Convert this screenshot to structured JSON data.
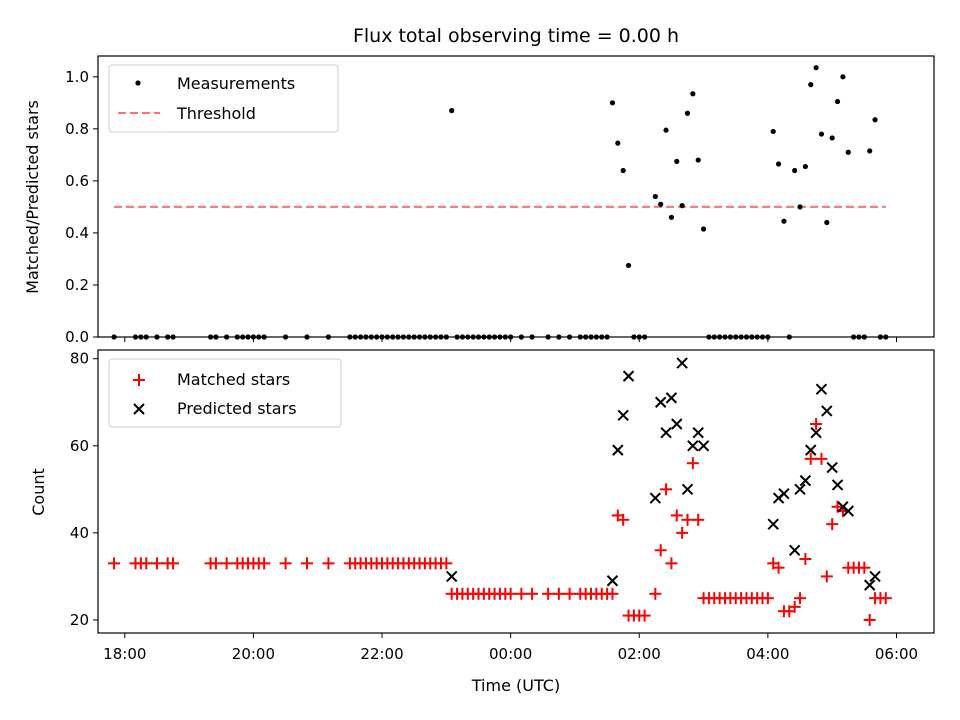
{
  "chart_data": [
    {
      "type": "scatter",
      "title": "Flux total observing time = 0.00 h",
      "xlabel": "",
      "ylabel": "Matched/Predicted stars",
      "xlim": [
        "17:35",
        "06:35"
      ],
      "ylim": [
        0,
        1.08
      ],
      "yticks": [
        "0.0",
        "0.2",
        "0.4",
        "0.6",
        "0.8",
        "1.0"
      ],
      "legend_position": "top-left",
      "series": [
        {
          "name": "Measurements",
          "marker": "dot",
          "color": "#000000",
          "points": [
            [
              "17:50",
              0
            ],
            [
              "18:10",
              0
            ],
            [
              "18:15",
              0
            ],
            [
              "18:20",
              0
            ],
            [
              "18:30",
              0
            ],
            [
              "18:40",
              0
            ],
            [
              "18:45",
              0
            ],
            [
              "19:20",
              0
            ],
            [
              "19:25",
              0
            ],
            [
              "19:35",
              0
            ],
            [
              "19:45",
              0
            ],
            [
              "19:50",
              0
            ],
            [
              "19:55",
              0
            ],
            [
              "20:00",
              0
            ],
            [
              "20:05",
              0
            ],
            [
              "20:10",
              0
            ],
            [
              "20:30",
              0
            ],
            [
              "20:50",
              0
            ],
            [
              "21:10",
              0
            ],
            [
              "21:30",
              0
            ],
            [
              "21:35",
              0
            ],
            [
              "21:40",
              0
            ],
            [
              "21:45",
              0
            ],
            [
              "21:50",
              0
            ],
            [
              "21:55",
              0
            ],
            [
              "22:00",
              0
            ],
            [
              "22:05",
              0
            ],
            [
              "22:10",
              0
            ],
            [
              "22:15",
              0
            ],
            [
              "22:20",
              0
            ],
            [
              "22:25",
              0
            ],
            [
              "22:30",
              0
            ],
            [
              "22:35",
              0
            ],
            [
              "22:40",
              0
            ],
            [
              "22:45",
              0
            ],
            [
              "22:50",
              0
            ],
            [
              "22:55",
              0
            ],
            [
              "23:00",
              0
            ],
            [
              "23:05",
              0.87
            ],
            [
              "23:10",
              0
            ],
            [
              "23:15",
              0
            ],
            [
              "23:20",
              0
            ],
            [
              "23:25",
              0
            ],
            [
              "23:30",
              0
            ],
            [
              "23:35",
              0
            ],
            [
              "23:40",
              0
            ],
            [
              "23:45",
              0
            ],
            [
              "23:50",
              0
            ],
            [
              "23:55",
              0
            ],
            [
              "00:00",
              0
            ],
            [
              "00:10",
              0
            ],
            [
              "00:20",
              0
            ],
            [
              "00:35",
              0
            ],
            [
              "00:45",
              0
            ],
            [
              "00:55",
              0
            ],
            [
              "01:05",
              0
            ],
            [
              "01:10",
              0
            ],
            [
              "01:15",
              0
            ],
            [
              "01:20",
              0
            ],
            [
              "01:25",
              0
            ],
            [
              "01:30",
              0
            ],
            [
              "01:35",
              0.9
            ],
            [
              "01:40",
              0.745
            ],
            [
              "01:45",
              0.64
            ],
            [
              "01:50",
              0.275
            ],
            [
              "01:55",
              0
            ],
            [
              "02:00",
              0
            ],
            [
              "02:05",
              0
            ],
            [
              "02:15",
              0.54
            ],
            [
              "02:20",
              0.51
            ],
            [
              "02:25",
              0.795
            ],
            [
              "02:30",
              0.46
            ],
            [
              "02:35",
              0.675
            ],
            [
              "02:40",
              0.505
            ],
            [
              "02:45",
              0.86
            ],
            [
              "02:50",
              0.935
            ],
            [
              "02:55",
              0.68
            ],
            [
              "03:00",
              0.415
            ],
            [
              "03:05",
              0
            ],
            [
              "03:10",
              0
            ],
            [
              "03:15",
              0
            ],
            [
              "03:20",
              0
            ],
            [
              "03:25",
              0
            ],
            [
              "03:30",
              0
            ],
            [
              "03:35",
              0
            ],
            [
              "03:40",
              0
            ],
            [
              "03:45",
              0
            ],
            [
              "03:50",
              0
            ],
            [
              "03:55",
              0
            ],
            [
              "04:00",
              0
            ],
            [
              "04:05",
              0.79
            ],
            [
              "04:10",
              0.665
            ],
            [
              "04:15",
              0.445
            ],
            [
              "04:20",
              0
            ],
            [
              "04:25",
              0.64
            ],
            [
              "04:30",
              0.5
            ],
            [
              "04:35",
              0.655
            ],
            [
              "04:40",
              0.97
            ],
            [
              "04:45",
              1.035
            ],
            [
              "04:50",
              0.78
            ],
            [
              "04:55",
              0.44
            ],
            [
              "05:00",
              0.765
            ],
            [
              "05:05",
              0.905
            ],
            [
              "05:10",
              1.0
            ],
            [
              "05:15",
              0.71
            ],
            [
              "05:20",
              0
            ],
            [
              "05:25",
              0
            ],
            [
              "05:30",
              0
            ],
            [
              "05:35",
              0.715
            ],
            [
              "05:40",
              0.835
            ],
            [
              "05:45",
              0
            ],
            [
              "05:50",
              0
            ]
          ]
        },
        {
          "name": "Threshold",
          "marker": "dashed-line",
          "color": "#ff7070",
          "points": [
            [
              "17:50",
              0.5
            ],
            [
              "05:50",
              0.5
            ]
          ]
        }
      ]
    },
    {
      "type": "scatter",
      "title": "",
      "xlabel": "Time (UTC)",
      "ylabel": "Count",
      "xlim": [
        "17:35",
        "06:35"
      ],
      "ylim": [
        17,
        82
      ],
      "xticks": [
        "18:00",
        "20:00",
        "22:00",
        "00:00",
        "02:00",
        "04:00",
        "06:00"
      ],
      "yticks": [
        "20",
        "40",
        "60",
        "80"
      ],
      "legend_position": "top-left",
      "series": [
        {
          "name": "Matched stars",
          "marker": "plus",
          "color": "#ff0000",
          "points": [
            [
              "17:50",
              33
            ],
            [
              "18:10",
              33
            ],
            [
              "18:15",
              33
            ],
            [
              "18:20",
              33
            ],
            [
              "18:30",
              33
            ],
            [
              "18:40",
              33
            ],
            [
              "18:45",
              33
            ],
            [
              "19:20",
              33
            ],
            [
              "19:25",
              33
            ],
            [
              "19:35",
              33
            ],
            [
              "19:45",
              33
            ],
            [
              "19:50",
              33
            ],
            [
              "19:55",
              33
            ],
            [
              "20:00",
              33
            ],
            [
              "20:05",
              33
            ],
            [
              "20:10",
              33
            ],
            [
              "20:30",
              33
            ],
            [
              "20:50",
              33
            ],
            [
              "21:10",
              33
            ],
            [
              "21:30",
              33
            ],
            [
              "21:35",
              33
            ],
            [
              "21:40",
              33
            ],
            [
              "21:45",
              33
            ],
            [
              "21:50",
              33
            ],
            [
              "21:55",
              33
            ],
            [
              "22:00",
              33
            ],
            [
              "22:05",
              33
            ],
            [
              "22:10",
              33
            ],
            [
              "22:15",
              33
            ],
            [
              "22:20",
              33
            ],
            [
              "22:25",
              33
            ],
            [
              "22:30",
              33
            ],
            [
              "22:35",
              33
            ],
            [
              "22:40",
              33
            ],
            [
              "22:45",
              33
            ],
            [
              "22:50",
              33
            ],
            [
              "22:55",
              33
            ],
            [
              "23:00",
              33
            ],
            [
              "23:05",
              26
            ],
            [
              "23:10",
              26
            ],
            [
              "23:15",
              26
            ],
            [
              "23:20",
              26
            ],
            [
              "23:25",
              26
            ],
            [
              "23:30",
              26
            ],
            [
              "23:35",
              26
            ],
            [
              "23:40",
              26
            ],
            [
              "23:45",
              26
            ],
            [
              "23:50",
              26
            ],
            [
              "23:55",
              26
            ],
            [
              "00:00",
              26
            ],
            [
              "00:10",
              26
            ],
            [
              "00:20",
              26
            ],
            [
              "00:35",
              26
            ],
            [
              "00:45",
              26
            ],
            [
              "00:55",
              26
            ],
            [
              "01:05",
              26
            ],
            [
              "01:10",
              26
            ],
            [
              "01:15",
              26
            ],
            [
              "01:20",
              26
            ],
            [
              "01:25",
              26
            ],
            [
              "01:30",
              26
            ],
            [
              "01:35",
              26
            ],
            [
              "01:40",
              44
            ],
            [
              "01:45",
              43
            ],
            [
              "01:50",
              21
            ],
            [
              "01:55",
              21
            ],
            [
              "02:00",
              21
            ],
            [
              "02:05",
              21
            ],
            [
              "02:15",
              26
            ],
            [
              "02:20",
              36
            ],
            [
              "02:25",
              50
            ],
            [
              "02:30",
              33
            ],
            [
              "02:35",
              44
            ],
            [
              "02:40",
              40
            ],
            [
              "02:45",
              43
            ],
            [
              "02:50",
              56
            ],
            [
              "02:55",
              43
            ],
            [
              "03:00",
              25
            ],
            [
              "03:05",
              25
            ],
            [
              "03:10",
              25
            ],
            [
              "03:15",
              25
            ],
            [
              "03:20",
              25
            ],
            [
              "03:25",
              25
            ],
            [
              "03:30",
              25
            ],
            [
              "03:35",
              25
            ],
            [
              "03:40",
              25
            ],
            [
              "03:45",
              25
            ],
            [
              "03:50",
              25
            ],
            [
              "03:55",
              25
            ],
            [
              "04:00",
              25
            ],
            [
              "04:05",
              33
            ],
            [
              "04:10",
              32
            ],
            [
              "04:15",
              22
            ],
            [
              "04:20",
              22
            ],
            [
              "04:25",
              23
            ],
            [
              "04:30",
              25
            ],
            [
              "04:35",
              34
            ],
            [
              "04:40",
              57
            ],
            [
              "04:45",
              65
            ],
            [
              "04:50",
              57
            ],
            [
              "04:55",
              30
            ],
            [
              "05:00",
              42
            ],
            [
              "05:05",
              46
            ],
            [
              "05:10",
              45
            ],
            [
              "05:15",
              32
            ],
            [
              "05:20",
              32
            ],
            [
              "05:25",
              32
            ],
            [
              "05:30",
              32
            ],
            [
              "05:35",
              20
            ],
            [
              "05:40",
              25
            ],
            [
              "05:45",
              25
            ],
            [
              "05:50",
              25
            ]
          ]
        },
        {
          "name": "Predicted stars",
          "marker": "x",
          "color": "#000000",
          "points": [
            [
              "23:05",
              30
            ],
            [
              "01:35",
              29
            ],
            [
              "01:40",
              59
            ],
            [
              "01:45",
              67
            ],
            [
              "01:50",
              76
            ],
            [
              "02:15",
              48
            ],
            [
              "02:20",
              70
            ],
            [
              "02:25",
              63
            ],
            [
              "02:30",
              71
            ],
            [
              "02:35",
              65
            ],
            [
              "02:40",
              79
            ],
            [
              "02:45",
              50
            ],
            [
              "02:50",
              60
            ],
            [
              "02:55",
              63
            ],
            [
              "03:00",
              60
            ],
            [
              "04:05",
              42
            ],
            [
              "04:10",
              48
            ],
            [
              "04:15",
              49
            ],
            [
              "04:25",
              36
            ],
            [
              "04:30",
              50
            ],
            [
              "04:35",
              52
            ],
            [
              "04:40",
              59
            ],
            [
              "04:45",
              63
            ],
            [
              "04:50",
              73
            ],
            [
              "04:55",
              68
            ],
            [
              "05:00",
              55
            ],
            [
              "05:05",
              51
            ],
            [
              "05:10",
              46
            ],
            [
              "05:15",
              45
            ],
            [
              "05:35",
              28
            ],
            [
              "05:40",
              30
            ]
          ]
        }
      ]
    }
  ]
}
